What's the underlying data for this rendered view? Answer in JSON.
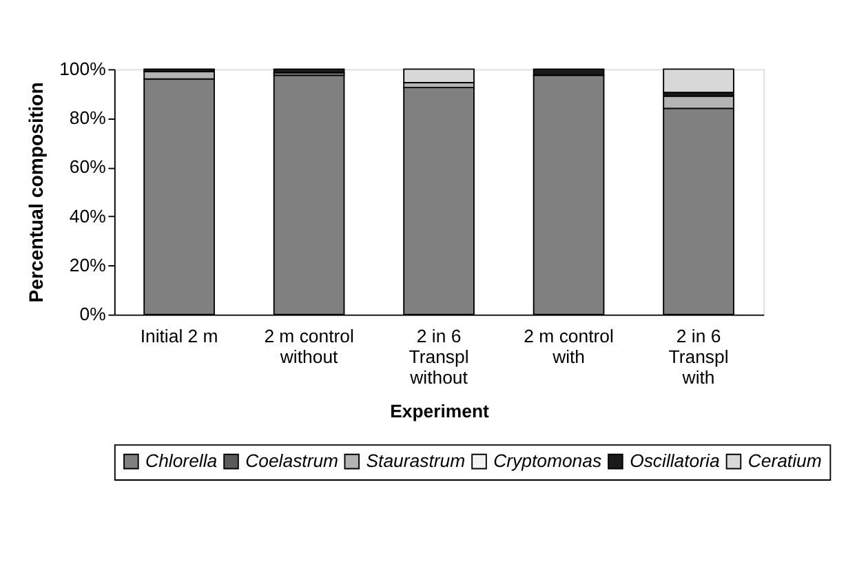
{
  "chart_data": {
    "type": "bar",
    "stacked": true,
    "xlabel": "Experiment",
    "ylabel": "Percentual composition",
    "categories": [
      "Initial 2 m",
      "2 m control\nwithout",
      "2 in 6\nTranspl\nwithout",
      "2 m control\nwith",
      "2 in 6\nTranspl\nwith"
    ],
    "series": [
      {
        "name": "Chlorella",
        "color": "#808080",
        "values": [
          96,
          97.5,
          92.5,
          97.5,
          84
        ]
      },
      {
        "name": "Coelastrum",
        "color": "#5a5a5a",
        "values": [
          0,
          0,
          0,
          0,
          0
        ]
      },
      {
        "name": "Staurastrum",
        "color": "#b4b4b4",
        "values": [
          3,
          1,
          2,
          0,
          5
        ]
      },
      {
        "name": "Cryptomonas",
        "color": "#f2f2f2",
        "values": [
          0,
          0,
          0,
          0,
          0
        ]
      },
      {
        "name": "Oscillatoria",
        "color": "#1a1a1a",
        "values": [
          1,
          1.5,
          0,
          2.5,
          1.5
        ]
      },
      {
        "name": "Ceratium",
        "color": "#d8d8d8",
        "values": [
          0,
          0,
          5.5,
          0,
          9.5
        ]
      }
    ],
    "ylim": [
      0,
      100
    ],
    "yticks": [
      {
        "value": 0,
        "label": "0%"
      },
      {
        "value": 20,
        "label": "20%"
      },
      {
        "value": 40,
        "label": "40%"
      },
      {
        "value": 60,
        "label": "60%"
      },
      {
        "value": 80,
        "label": "80%"
      },
      {
        "value": 100,
        "label": "100%"
      }
    ],
    "grid": false,
    "legend": "bottom"
  }
}
